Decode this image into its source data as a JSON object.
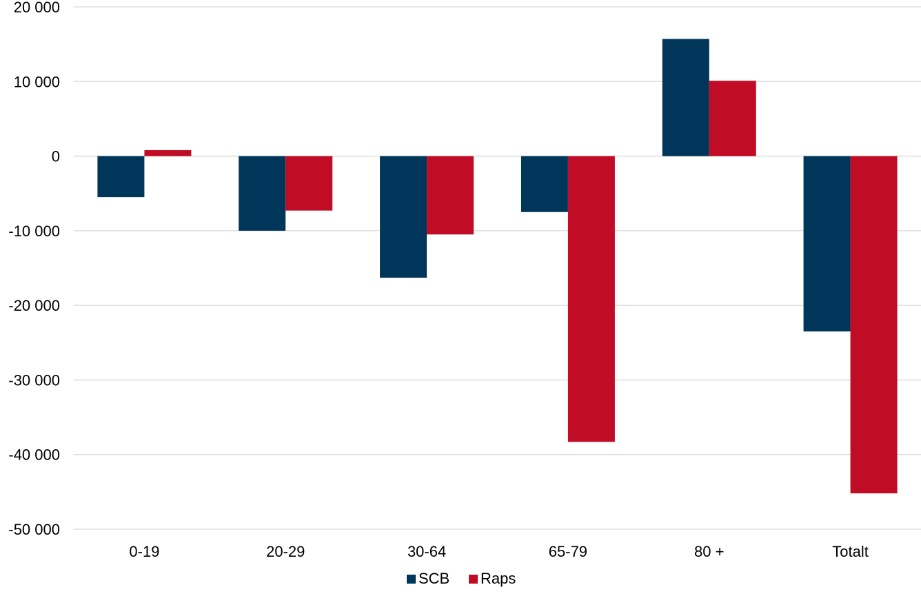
{
  "chart_data": {
    "type": "bar",
    "categories": [
      "0-19",
      "20-29",
      "30-64",
      "65-79",
      "80 +",
      "Totalt"
    ],
    "series": [
      {
        "name": "SCB",
        "color": "#003659",
        "values": [
          -5500,
          -10000,
          -16300,
          -7500,
          15700,
          -23500
        ]
      },
      {
        "name": "Raps",
        "color": "#C00D25",
        "values": [
          800,
          -7300,
          -10500,
          -38300,
          10100,
          -45200
        ]
      }
    ],
    "ylim": [
      -50000,
      20000
    ],
    "yticks": [
      20000,
      10000,
      0,
      -10000,
      -20000,
      -30000,
      -40000,
      -50000
    ],
    "ytick_labels": [
      "20 000",
      "10 000",
      "0",
      "-10 000",
      "-20 000",
      "-30 000",
      "-40 000",
      "-50 000"
    ],
    "grid": true,
    "legend_position": "bottom-center",
    "title": "",
    "xlabel": "",
    "ylabel": ""
  }
}
